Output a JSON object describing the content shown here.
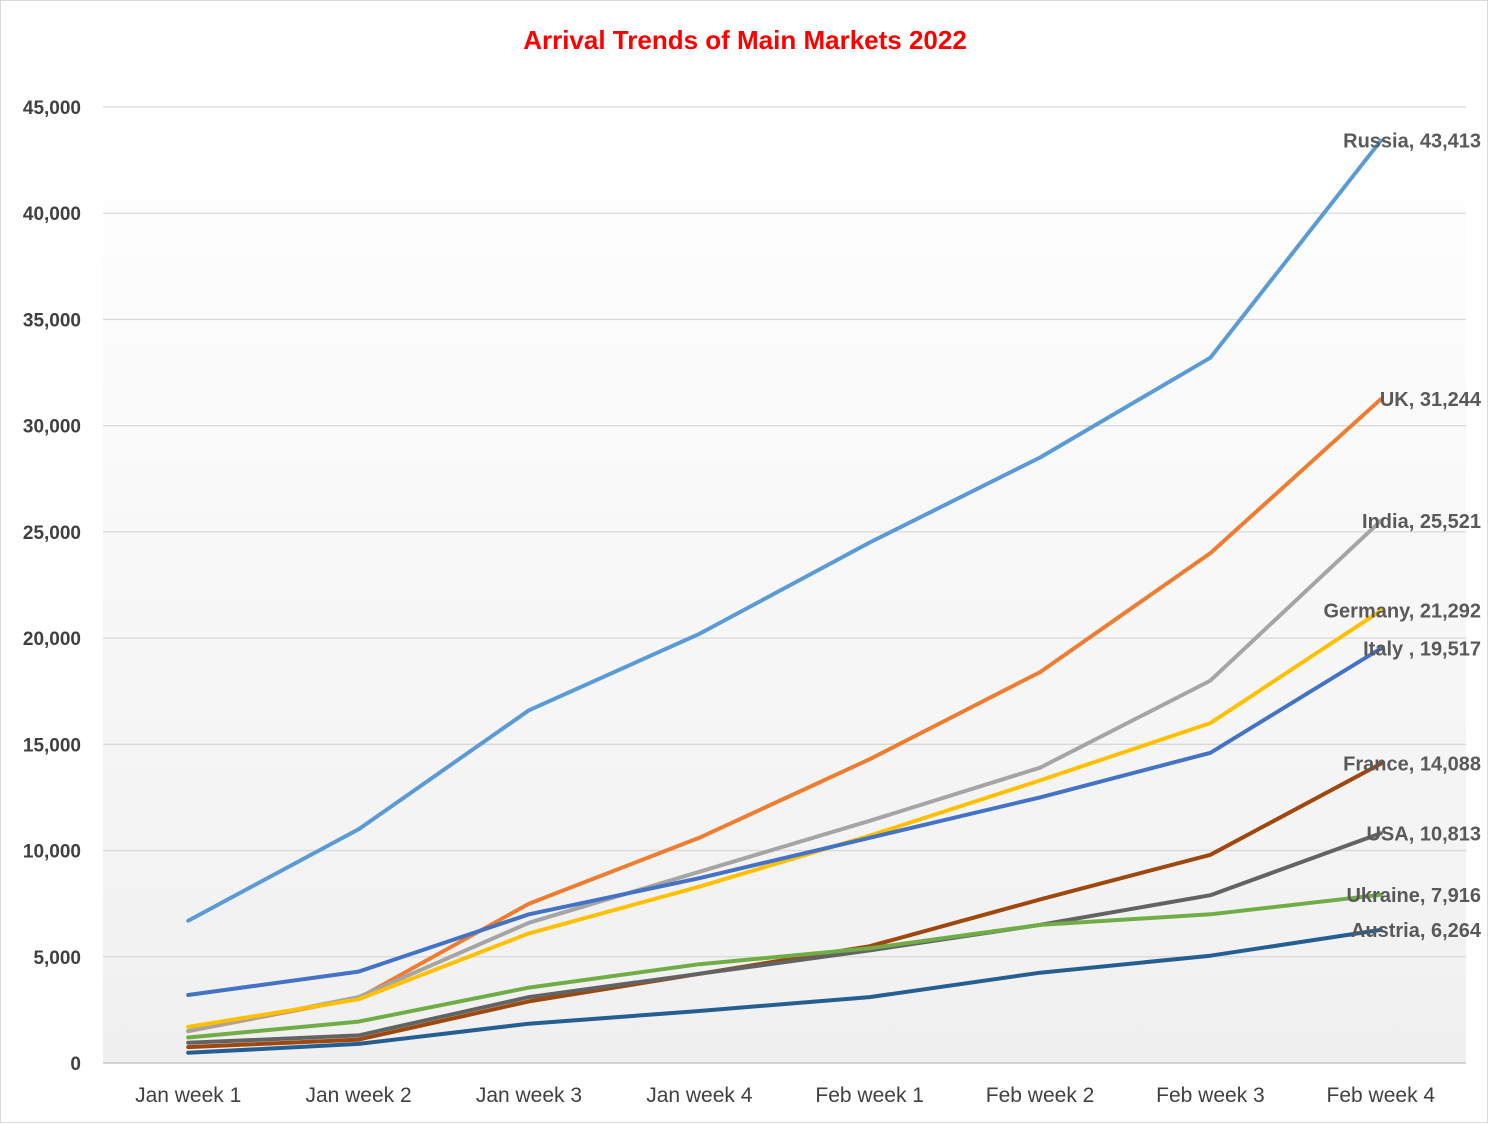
{
  "chart_data": {
    "type": "line",
    "title": "Arrival Trends of Main Markets 2022",
    "xlabel": "",
    "ylabel": "",
    "categories": [
      "Jan week 1",
      "Jan week 2",
      "Jan week 3",
      "Jan week 4",
      "Feb week 1",
      "Feb week 2",
      "Feb week 3",
      "Feb week 4"
    ],
    "y_ticks": [
      "0",
      "5,000",
      "10,000",
      "15,000",
      "20,000",
      "25,000",
      "30,000",
      "35,000",
      "40,000",
      "45,000"
    ],
    "ylim": [
      0,
      45000
    ],
    "grid": "horizontal",
    "legend": "none",
    "series": [
      {
        "name": "Russia",
        "color": "#5b9bd5",
        "values": [
          6700,
          11000,
          16600,
          20200,
          24500,
          28500,
          33200,
          43413
        ],
        "end_label": "Russia, 43,413"
      },
      {
        "name": "UK",
        "color": "#ed7d31",
        "values": [
          1500,
          3050,
          7500,
          10600,
          14300,
          18400,
          24000,
          31244
        ],
        "end_label": "UK, 31,244"
      },
      {
        "name": "India",
        "color": "#a5a5a5",
        "values": [
          1500,
          3100,
          6600,
          9000,
          11400,
          13900,
          18000,
          25521
        ],
        "end_label": "India, 25,521"
      },
      {
        "name": "Germany",
        "color": "#ffc000",
        "values": [
          1700,
          3000,
          6100,
          8300,
          10700,
          13300,
          16000,
          21292
        ],
        "end_label": "Germany, 21,292"
      },
      {
        "name": "Italy",
        "color": "#4472c4",
        "values": [
          3200,
          4300,
          7000,
          8700,
          10600,
          12500,
          14600,
          19517
        ],
        "end_label": "Italy , 19,517"
      },
      {
        "name": "France",
        "color": "#9e480e",
        "values": [
          750,
          1100,
          2900,
          4200,
          5500,
          7700,
          9800,
          14088
        ],
        "end_label": "France, 14,088"
      },
      {
        "name": "USA",
        "color": "#636363",
        "values": [
          950,
          1300,
          3100,
          4200,
          5300,
          6500,
          7900,
          10813
        ],
        "end_label": "USA, 10,813"
      },
      {
        "name": "Ukraine",
        "color": "#70ad47",
        "values": [
          1200,
          1950,
          3550,
          4650,
          5400,
          6500,
          7000,
          7916
        ],
        "end_label": "Ukraine, 7,916"
      },
      {
        "name": "Austria",
        "color": "#255e91",
        "values": [
          480,
          900,
          1850,
          2450,
          3100,
          4250,
          5050,
          6264
        ],
        "end_label": "Austria, 6,264"
      }
    ]
  }
}
